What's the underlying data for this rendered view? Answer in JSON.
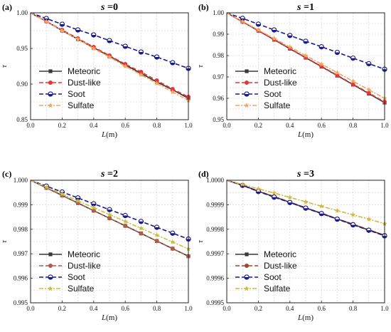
{
  "chart_data": [
    {
      "type": "line",
      "panel_label": "(a)",
      "title": "s =0",
      "xlabel": "L(m)",
      "ylabel": "τ",
      "xlim": [
        0,
        1.0
      ],
      "ylim": [
        0.85,
        1.0
      ],
      "xticks": [
        "0.0",
        "0.2",
        "0.4",
        "0.6",
        "0.8",
        "1.0"
      ],
      "yticks": [
        "0.85",
        "0.90",
        "0.95",
        "1.00"
      ],
      "grid": true,
      "legend_position": "bottom-left",
      "x": [
        0,
        0.1,
        0.2,
        0.3,
        0.4,
        0.5,
        0.6,
        0.7,
        0.8,
        0.9,
        1.0
      ],
      "series": [
        {
          "name": "Meteoric",
          "values": [
            1.0,
            0.988,
            0.975,
            0.963,
            0.951,
            0.939,
            0.927,
            0.915,
            0.903,
            0.892,
            0.88
          ]
        },
        {
          "name": "Dust-like",
          "values": [
            1.0,
            0.988,
            0.976,
            0.964,
            0.952,
            0.94,
            0.928,
            0.917,
            0.905,
            0.893,
            0.882
          ]
        },
        {
          "name": "Soot",
          "values": [
            1.0,
            0.992,
            0.984,
            0.976,
            0.969,
            0.961,
            0.953,
            0.945,
            0.938,
            0.93,
            0.922
          ]
        },
        {
          "name": "Sulfate",
          "values": [
            1.0,
            0.988,
            0.975,
            0.963,
            0.95,
            0.938,
            0.925,
            0.913,
            0.901,
            0.889,
            0.877
          ]
        }
      ]
    },
    {
      "type": "line",
      "panel_label": "(b)",
      "title": "s =1",
      "xlabel": "L(m)",
      "ylabel": "τ",
      "xlim": [
        0,
        1.0
      ],
      "ylim": [
        0.95,
        1.0
      ],
      "xticks": [
        "0.0",
        "0.2",
        "0.4",
        "0.6",
        "0.8",
        "1.0"
      ],
      "yticks": [
        "0.95",
        "0.96",
        "0.97",
        "0.98",
        "0.99",
        "1.00"
      ],
      "grid": true,
      "legend_position": "bottom-left",
      "x": [
        0,
        0.1,
        0.2,
        0.3,
        0.4,
        0.5,
        0.6,
        0.7,
        0.8,
        0.9,
        1.0
      ],
      "series": [
        {
          "name": "Meteoric",
          "values": [
            1.0,
            0.9958,
            0.9916,
            0.9874,
            0.9832,
            0.979,
            0.9748,
            0.9706,
            0.9664,
            0.9622,
            0.958
          ]
        },
        {
          "name": "Dust-like",
          "values": [
            1.0,
            0.9958,
            0.9917,
            0.9875,
            0.9833,
            0.9791,
            0.975,
            0.9708,
            0.9666,
            0.9625,
            0.9583
          ]
        },
        {
          "name": "Soot",
          "values": [
            1.0,
            0.9974,
            0.9947,
            0.992,
            0.9894,
            0.9867,
            0.9841,
            0.9815,
            0.9788,
            0.9762,
            0.9736
          ]
        },
        {
          "name": "Sulfate",
          "values": [
            1.0,
            0.996,
            0.992,
            0.988,
            0.984,
            0.98,
            0.976,
            0.972,
            0.968,
            0.964,
            0.96
          ]
        }
      ]
    },
    {
      "type": "line",
      "panel_label": "(c)",
      "title": "s =2",
      "xlabel": "L(m)",
      "ylabel": "τ",
      "xlim": [
        0,
        1.0
      ],
      "ylim": [
        0.995,
        1.0
      ],
      "xticks": [
        "0.0",
        "0.2",
        "0.4",
        "0.6",
        "0.8",
        "1.0"
      ],
      "yticks": [
        "0.995",
        "0.996",
        "0.997",
        "0.998",
        "0.999",
        "1.000"
      ],
      "grid": true,
      "legend_position": "bottom-left",
      "x": [
        0,
        0.1,
        0.2,
        0.3,
        0.4,
        0.5,
        0.6,
        0.7,
        0.8,
        0.9,
        1.0
      ],
      "series": [
        {
          "name": "Meteoric",
          "values": [
            1.0,
            0.99969,
            0.99938,
            0.99907,
            0.99876,
            0.99845,
            0.99814,
            0.99783,
            0.99752,
            0.99721,
            0.9969
          ]
        },
        {
          "name": "Dust-like",
          "values": [
            1.0,
            0.99969,
            0.99938,
            0.99907,
            0.99876,
            0.99845,
            0.99814,
            0.99783,
            0.99752,
            0.99721,
            0.9969
          ]
        },
        {
          "name": "Soot",
          "values": [
            1.0,
            0.99976,
            0.99952,
            0.99928,
            0.99904,
            0.9988,
            0.99856,
            0.99832,
            0.99808,
            0.99784,
            0.9976
          ]
        },
        {
          "name": "Sulfate",
          "values": [
            1.0,
            0.99972,
            0.99944,
            0.99916,
            0.99888,
            0.9986,
            0.99832,
            0.99804,
            0.99776,
            0.99748,
            0.9972
          ]
        }
      ]
    },
    {
      "type": "line",
      "panel_label": "(d)",
      "title": "s =3",
      "xlabel": "L(m)",
      "ylabel": "τ",
      "xlim": [
        0,
        1.0
      ],
      "ylim": [
        0.9995,
        1.0
      ],
      "xticks": [
        "0.0",
        "0.2",
        "0.4",
        "0.6",
        "0.8",
        "1.0"
      ],
      "yticks": [
        "0.9995",
        "0.9996",
        "0.9997",
        "0.9998",
        "0.9999",
        "1.0000"
      ],
      "grid": true,
      "legend_position": "bottom-left",
      "x": [
        0,
        0.1,
        0.2,
        0.3,
        0.4,
        0.5,
        0.6,
        0.7,
        0.8,
        0.9,
        1.0
      ],
      "series": [
        {
          "name": "Meteoric",
          "values": [
            1.0,
            0.99998,
            0.999955,
            0.999933,
            0.99991,
            0.999887,
            0.999865,
            0.999842,
            0.99982,
            0.999797,
            0.999775
          ]
        },
        {
          "name": "Dust-like",
          "values": [
            1.0,
            0.99998,
            0.999956,
            0.999934,
            0.999911,
            0.999888,
            0.999866,
            0.999843,
            0.999821,
            0.999798,
            0.999776
          ]
        },
        {
          "name": "Soot",
          "values": [
            1.0,
            0.999979,
            0.999954,
            0.999931,
            0.999909,
            0.999886,
            0.999864,
            0.999841,
            0.999818,
            0.999796,
            0.999773
          ]
        },
        {
          "name": "Sulfate",
          "values": [
            1.0,
            0.999983,
            0.999965,
            0.999948,
            0.99993,
            0.999912,
            0.999894,
            0.999876,
            0.999859,
            0.999841,
            0.999823
          ]
        }
      ]
    }
  ],
  "styles": {
    "Meteoric": {
      "color": "#3a3a3a",
      "marker": "square",
      "dash": "solid"
    },
    "Dust-like": {
      "color": "#e8323c",
      "marker": "circle",
      "dash": "dash"
    },
    "Soot": {
      "color": "#1a1a8c",
      "marker": "circle-halffill",
      "dash": "dash"
    },
    "Sulfate": {
      "color": "#f4a65a",
      "marker": "star",
      "dash": "dashdot"
    }
  },
  "panel_d_series_colors": {
    "Meteoric": "#3a3a3a",
    "Dust-like": "#a0452a",
    "Soot": "#1a1a8c",
    "Sulfate": "#d4b640"
  },
  "panel_c_series_colors": {
    "Meteoric": "#3a3a3a",
    "Dust-like": "#b05a48",
    "Soot": "#1a1a8c",
    "Sulfate": "#c8c040"
  }
}
